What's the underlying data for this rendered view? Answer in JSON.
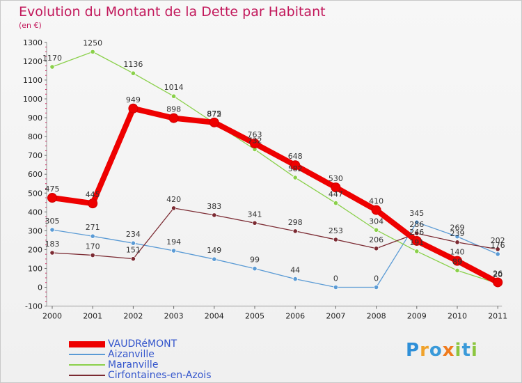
{
  "title": "Evolution du Montant de la Dette par Habitant",
  "unit": "(en €)",
  "brand": {
    "letters": [
      {
        "ch": "P",
        "color": "#2e8fd8"
      },
      {
        "ch": "r",
        "color": "#f0a22b"
      },
      {
        "ch": "o",
        "color": "#3a9ad9"
      },
      {
        "ch": "x",
        "color": "#f07b1d"
      },
      {
        "ch": "i",
        "color": "#8cc63f"
      },
      {
        "ch": "t",
        "color": "#3a9ad9"
      },
      {
        "ch": "i",
        "color": "#8cc63f"
      }
    ]
  },
  "chart_data": {
    "type": "line",
    "title": "Evolution du Montant de la Dette par Habitant",
    "ylabel": "(en €)",
    "xlabel": "",
    "categories": [
      "2000",
      "2001",
      "2002",
      "2003",
      "2004",
      "2005",
      "2006",
      "2007",
      "2008",
      "2009",
      "2010",
      "2011"
    ],
    "ylim": [
      -100,
      1300
    ],
    "yticks": [
      -100,
      0,
      100,
      200,
      300,
      400,
      500,
      600,
      700,
      800,
      900,
      1000,
      1100,
      1200,
      1300
    ],
    "grid": false,
    "legend_position": "bottom-left",
    "series": [
      {
        "name": "Aizanville",
        "color": "#5b9bd5",
        "style": "thin",
        "values": [
          305,
          271,
          234,
          194,
          149,
          99,
          44,
          0,
          0,
          345,
          269,
          176
        ],
        "labels": [
          "305",
          "271",
          "234",
          "194",
          "149",
          "99",
          "44",
          "0",
          "0",
          "345",
          "269",
          "176"
        ]
      },
      {
        "name": "Maranville",
        "color": "#8ad04a",
        "style": "thin",
        "values": [
          1170,
          1250,
          1136,
          1014,
          872,
          732,
          582,
          447,
          304,
          191,
          89,
          20
        ],
        "labels": [
          "1170",
          "1250",
          "1136",
          "1014",
          "872",
          "732",
          "582",
          "447",
          "304",
          "191",
          "89",
          "20"
        ]
      },
      {
        "name": "Cirfontaines-en-Azois",
        "color": "#7b2a32",
        "style": "thin",
        "values": [
          183,
          170,
          151,
          420,
          383,
          341,
          298,
          253,
          206,
          286,
          239,
          202
        ],
        "labels": [
          "183",
          "170",
          "151",
          "420",
          "383",
          "341",
          "298",
          "253",
          "206",
          "286",
          "239",
          "202"
        ]
      },
      {
        "name": "VAUDRéMONT",
        "color": "#ee0000",
        "style": "thick",
        "values": [
          475,
          445,
          949,
          898,
          875,
          763,
          648,
          530,
          410,
          246,
          140,
          26
        ],
        "labels": [
          "475",
          "445",
          "949",
          "898",
          "875",
          "763",
          "648",
          "530",
          "410",
          "246",
          "140",
          "26"
        ]
      }
    ],
    "legend": [
      {
        "name": "VAUDRéMONT",
        "color": "#ee0000",
        "style": "thick"
      },
      {
        "name": "Aizanville",
        "color": "#5b9bd5",
        "style": "thin"
      },
      {
        "name": "Maranville",
        "color": "#8ad04a",
        "style": "thin"
      },
      {
        "name": "Cirfontaines-en-Azois",
        "color": "#7b2a32",
        "style": "thin"
      }
    ]
  }
}
